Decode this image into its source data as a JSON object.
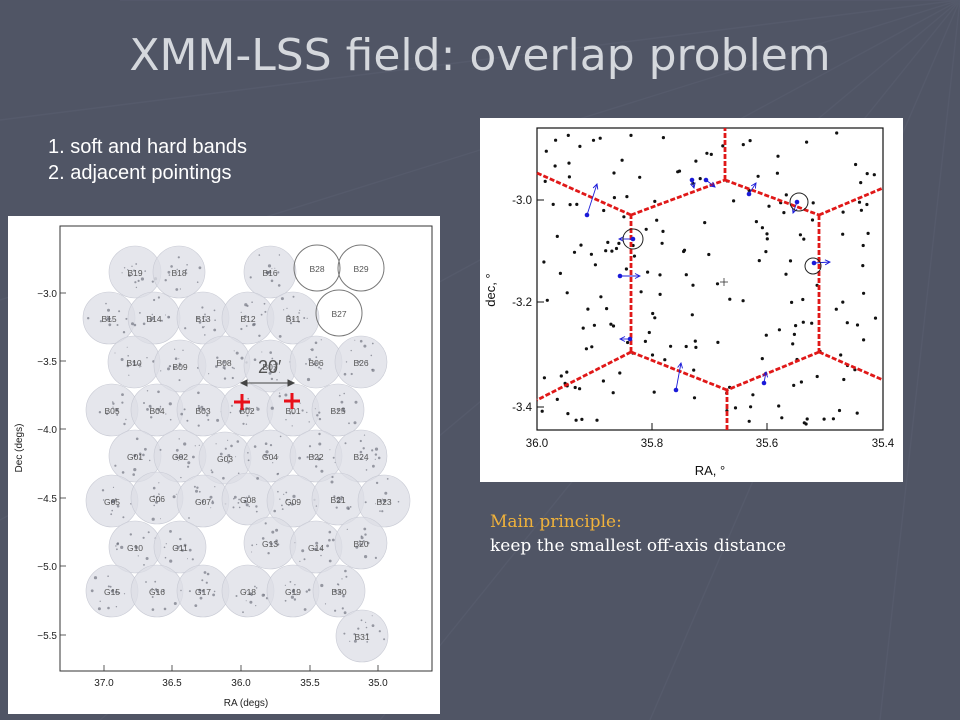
{
  "slide": {
    "title": "XMM-LSS field: overlap problem",
    "list": [
      "1. soft and hard bands",
      "2. adjacent pointings"
    ],
    "principle_heading": "Main principle:",
    "principle_body": "keep the smallest off-axis distance"
  },
  "left_map": {
    "xlabel": "RA (degs)",
    "ylabel": "Dec (degs)",
    "xticks": [
      "37.0",
      "36.5",
      "36.0",
      "35.5",
      "35.0"
    ],
    "yticks": [
      "−3.0",
      "−3.5",
      "−4.0",
      "−4.5",
      "−5.0",
      "−5.5"
    ],
    "scale_label": "20′",
    "pointings": [
      "B19",
      "B18",
      "B16",
      "B28",
      "B29",
      "B15",
      "B14",
      "B13",
      "B12",
      "B11",
      "B27",
      "B10",
      "B09",
      "B08",
      "B07",
      "B06",
      "B26",
      "B05",
      "B04",
      "B03",
      "B02",
      "B01",
      "B25",
      "G01",
      "G02",
      "G03",
      "G04",
      "B22",
      "B24",
      "G05",
      "G06",
      "G07",
      "G08",
      "G09",
      "B21",
      "B23",
      "G10",
      "G11",
      "G13",
      "G14",
      "B20",
      "G15",
      "G16",
      "G17",
      "G18",
      "G19",
      "B30",
      "B31"
    ],
    "pointing_color": "#dcdee6",
    "marker_color": "#e8101a"
  },
  "right_map": {
    "xlabel": "RA, °",
    "ylabel": "dec, °",
    "xticks": [
      "36.0",
      "35.8",
      "35.6",
      "35.4"
    ],
    "yticks": [
      "-3.0",
      "-3.2",
      "-3.4"
    ],
    "boundary_color": "#e01818",
    "source_color": "#1a1ad8"
  }
}
